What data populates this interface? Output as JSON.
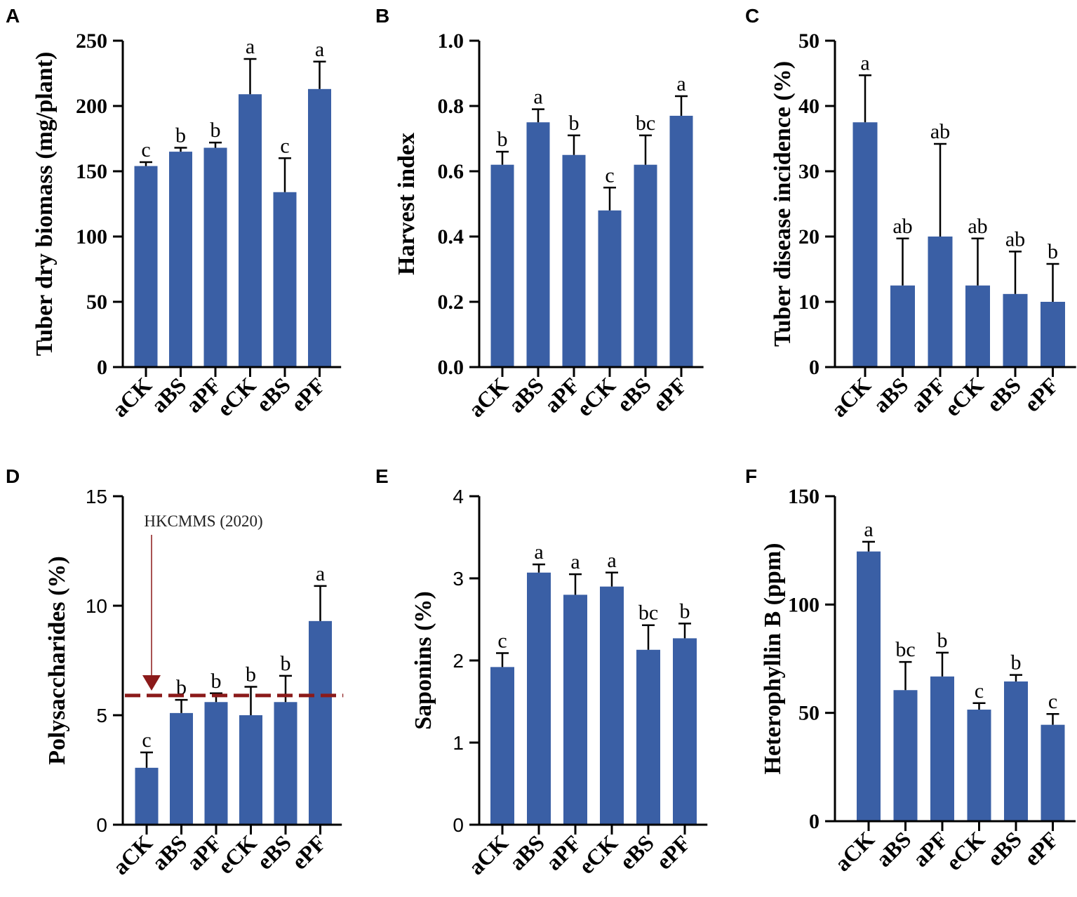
{
  "chart_data": [
    {
      "panel": "A",
      "type": "bar",
      "categories": [
        "aCK",
        "aBS",
        "aPF",
        "eCK",
        "eBS",
        "ePF"
      ],
      "values": [
        154,
        165,
        168,
        209,
        134,
        213
      ],
      "errors": [
        3,
        3,
        4,
        27,
        26,
        21
      ],
      "significance": [
        "c",
        "b",
        "b",
        "a",
        "c",
        "a"
      ],
      "ylabel": "Tuber dry biomass (mg/plant)",
      "ylim": [
        0,
        250
      ],
      "yticks": [
        "0",
        "50",
        "100",
        "150",
        "200",
        "250"
      ],
      "bar_color": "#3a5fa5"
    },
    {
      "panel": "B",
      "type": "bar",
      "categories": [
        "aCK",
        "aBS",
        "aPF",
        "eCK",
        "eBS",
        "ePF"
      ],
      "values": [
        0.62,
        0.75,
        0.65,
        0.48,
        0.62,
        0.77
      ],
      "errors": [
        0.04,
        0.04,
        0.06,
        0.07,
        0.09,
        0.06
      ],
      "significance": [
        "b",
        "a",
        "b",
        "c",
        "bc",
        "a"
      ],
      "ylabel": "Harvest index",
      "ylim": [
        0,
        1.0
      ],
      "yticks": [
        "0.0",
        "0.2",
        "0.4",
        "0.6",
        "0.8",
        "1.0"
      ],
      "bar_color": "#3a5fa5"
    },
    {
      "panel": "C",
      "type": "bar",
      "categories": [
        "aCK",
        "aBS",
        "aPF",
        "eCK",
        "eBS",
        "ePF"
      ],
      "values": [
        37.5,
        12.5,
        20,
        12.5,
        11.2,
        10
      ],
      "errors": [
        7.2,
        7.2,
        14.2,
        7.2,
        6.5,
        5.8
      ],
      "significance": [
        "a",
        "ab",
        "ab",
        "ab",
        "ab",
        "b"
      ],
      "ylabel": "Tuber disease incidence (%)",
      "ylim": [
        0,
        50
      ],
      "yticks": [
        "0",
        "10",
        "20",
        "30",
        "40",
        "50"
      ],
      "bar_color": "#3a5fa5"
    },
    {
      "panel": "D",
      "type": "bar",
      "categories": [
        "aCK",
        "aBS",
        "aPF",
        "eCK",
        "eBS",
        "ePF"
      ],
      "values": [
        2.6,
        5.1,
        5.6,
        5.0,
        5.6,
        9.3
      ],
      "errors": [
        0.7,
        0.6,
        0.4,
        1.3,
        1.2,
        1.6
      ],
      "significance": [
        "c",
        "b",
        "b",
        "b",
        "b",
        "a"
      ],
      "ylabel": "Polysaccharides (%)",
      "ylim": [
        0,
        15
      ],
      "yticks": [
        "0",
        "5",
        "10",
        "15"
      ],
      "reference_line": 5.9,
      "reference_label": "HKCMMS (2020)",
      "reference_color": "#8b1a1a",
      "bar_color": "#3a5fa5"
    },
    {
      "panel": "E",
      "type": "bar",
      "categories": [
        "aCK",
        "aBS",
        "aPF",
        "eCK",
        "eBS",
        "ePF"
      ],
      "values": [
        1.92,
        3.07,
        2.8,
        2.9,
        2.13,
        2.27
      ],
      "errors": [
        0.17,
        0.1,
        0.25,
        0.17,
        0.3,
        0.18
      ],
      "significance": [
        "c",
        "a",
        "a",
        "a",
        "bc",
        "b"
      ],
      "ylabel": "Saponins (%)",
      "ylim": [
        0,
        4
      ],
      "yticks": [
        "0",
        "1",
        "2",
        "3",
        "4"
      ],
      "bar_color": "#3a5fa5"
    },
    {
      "panel": "F",
      "type": "bar",
      "categories": [
        "aCK",
        "aBS",
        "aPF",
        "eCK",
        "eBS",
        "ePF"
      ],
      "values": [
        124.5,
        60.5,
        66.8,
        51.5,
        64.5,
        44.5
      ],
      "errors": [
        4.5,
        13,
        11,
        3,
        3,
        5
      ],
      "significance": [
        "a",
        "bc",
        "b",
        "c",
        "b",
        "c"
      ],
      "ylabel": "Heterophyllin B (ppm)",
      "ylim": [
        0,
        150
      ],
      "yticks": [
        "0",
        "50",
        "100",
        "150"
      ],
      "bar_color": "#3a5fa5"
    }
  ]
}
